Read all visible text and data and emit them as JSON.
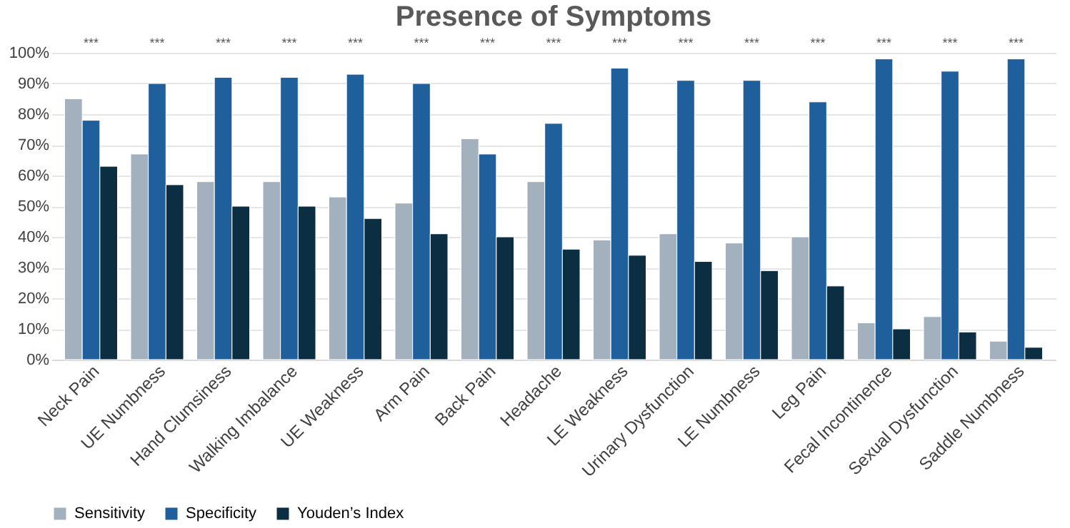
{
  "chart_data": {
    "type": "bar",
    "title": "Presence of Symptoms",
    "categories": [
      "Neck Pain",
      "UE Numbness",
      "Hand Clumsiness",
      "Walking Imbalance",
      "UE Weakness",
      "Arm Pain",
      "Back Pain",
      "Headache",
      "LE Weakness",
      "Urinary Dysfunction",
      "LE Numbness",
      "Leg Pain",
      "Fecal Incontinence",
      "Sexual Dysfunction",
      "Saddle Numbness"
    ],
    "series": [
      {
        "name": "Sensitivity",
        "color": "#a3b1bf",
        "values": [
          85,
          67,
          58,
          58,
          53,
          51,
          72,
          58,
          39,
          41,
          38,
          40,
          12,
          14,
          6
        ]
      },
      {
        "name": "Specificity",
        "color": "#1f5f9c",
        "values": [
          78,
          90,
          92,
          92,
          93,
          90,
          67,
          77,
          95,
          91,
          91,
          84,
          98,
          94,
          98
        ]
      },
      {
        "name": "Youden’s Index",
        "color": "#0c2e42",
        "values": [
          63,
          57,
          50,
          50,
          46,
          41,
          40,
          36,
          34,
          32,
          29,
          24,
          10,
          9,
          4
        ]
      }
    ],
    "ylim": [
      0,
      100
    ],
    "yticks": [
      {
        "value": 0,
        "label": "0%"
      },
      {
        "value": 10,
        "label": "10%"
      },
      {
        "value": 20,
        "label": "20%"
      },
      {
        "value": 30,
        "label": "30%"
      },
      {
        "value": 40,
        "label": "40%"
      },
      {
        "value": 50,
        "label": "50%"
      },
      {
        "value": 60,
        "label": "60%"
      },
      {
        "value": 70,
        "label": "70%"
      },
      {
        "value": 80,
        "label": "80%"
      },
      {
        "value": 90,
        "label": "90%"
      },
      {
        "value": 100,
        "label": "100%"
      }
    ],
    "annotations": [
      "***",
      "***",
      "***",
      "***",
      "***",
      "***",
      "***",
      "***",
      "***",
      "***",
      "***",
      "***",
      "***",
      "***",
      "***"
    ],
    "grid": "y",
    "legend": "bottom"
  }
}
